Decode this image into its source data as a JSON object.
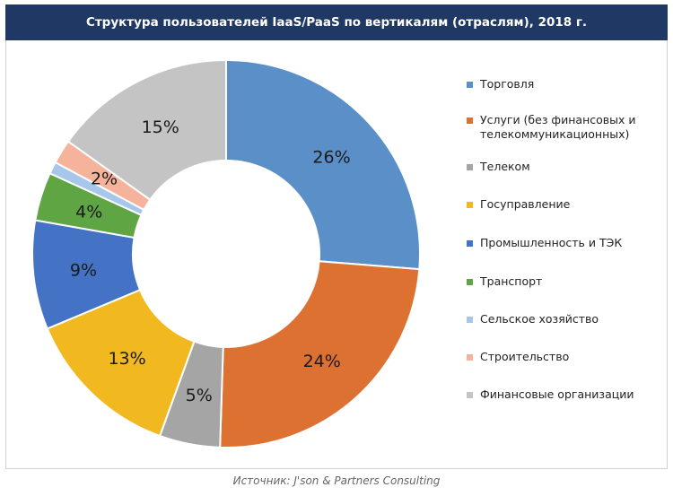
{
  "title": "Структура пользователей IaaS/PaaS по вертикалям (отраслям), 2018 г.",
  "source": "Источник: J'son & Partners Consulting",
  "chart_data": {
    "type": "pie",
    "variant": "donut",
    "legend_position": "right",
    "series": [
      {
        "name": "Торговля",
        "value": 26,
        "label": "26%",
        "color": "#5b8fc7"
      },
      {
        "name": "Услуги (без финансовых и телекоммуникационных)",
        "value": 24,
        "label": "24%",
        "color": "#dd7131"
      },
      {
        "name": "Телеком",
        "value": 5,
        "label": "5%",
        "color": "#a5a5a5"
      },
      {
        "name": "Госуправление",
        "value": 13,
        "label": "13%",
        "color": "#f2b81f"
      },
      {
        "name": "Промышленность и ТЭК",
        "value": 9,
        "label": "9%",
        "color": "#4472c4"
      },
      {
        "name": "Транспорт",
        "value": 4,
        "label": "4%",
        "color": "#5fa544"
      },
      {
        "name": "Сельское хозяйство",
        "value": 1,
        "label": "",
        "color": "#a7c7ea"
      },
      {
        "name": "Строительство",
        "value": 2,
        "label": "2%",
        "color": "#f4b39a"
      },
      {
        "name": "Финансовые организации",
        "value": 15,
        "label": "15%",
        "color": "#c4c4c4"
      }
    ]
  }
}
